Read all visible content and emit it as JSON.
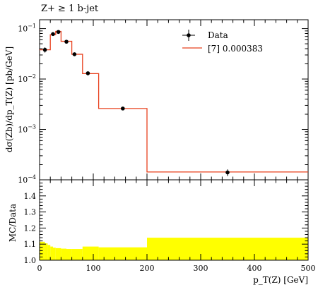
{
  "chart_data": [
    {
      "type": "line",
      "title": "Z+ ≥ 1 b-jet",
      "ylabel": "dσ(Zb)/dp_T(Z) [pb/GeV]",
      "yscale": "log",
      "ylim": [
        0.0001,
        0.15
      ],
      "xlim": [
        0,
        500
      ],
      "yticks": [
        {
          "value": 0.1,
          "mant": "10",
          "exp": "−1"
        },
        {
          "value": 0.01,
          "mant": "10",
          "exp": "−2"
        },
        {
          "value": 0.001,
          "mant": "10",
          "exp": "−3"
        },
        {
          "value": 0.0001,
          "mant": "10",
          "exp": "−4"
        }
      ],
      "legend": {
        "position": "top-right"
      },
      "series": [
        {
          "name": "Data",
          "kind": "points",
          "color": "#000000",
          "x": [
            10,
            25,
            35,
            50,
            65,
            90,
            155,
            350
          ],
          "y": [
            0.038,
            0.078,
            0.086,
            0.055,
            0.031,
            0.013,
            0.0026,
            0.00014
          ],
          "yerr_rel": [
            0.12,
            0.07,
            0.06,
            0.07,
            0.08,
            0.09,
            0.06,
            0.15
          ]
        },
        {
          "name": "[7] 0.000383",
          "kind": "step",
          "color": "#e8411e",
          "edges": [
            0,
            20,
            30,
            40,
            60,
            80,
            110,
            200,
            500
          ],
          "values": [
            0.038,
            0.076,
            0.088,
            0.056,
            0.031,
            0.0128,
            0.0026,
            0.000143
          ]
        }
      ]
    },
    {
      "type": "area",
      "ylabel": "MC/Data",
      "xlabel": "p_T(Z) [GeV]",
      "ylim": [
        1.0,
        1.5
      ],
      "xlim": [
        0,
        500
      ],
      "yticks": [
        1.0,
        1.1,
        1.2,
        1.3,
        1.4
      ],
      "xticks": [
        0,
        100,
        200,
        300,
        400,
        500
      ],
      "band_color": "#ffff00",
      "band": {
        "edges": [
          0,
          10,
          15,
          20,
          25,
          30,
          40,
          50,
          60,
          80,
          110,
          200,
          500
        ],
        "upper": [
          1.115,
          1.105,
          1.095,
          1.085,
          1.078,
          1.075,
          1.072,
          1.07,
          1.07,
          1.085,
          1.08,
          1.14
        ],
        "lower": [
          1.0,
          1.0,
          1.0,
          1.0,
          1.0,
          1.0,
          1.0,
          1.0,
          1.0,
          1.0,
          1.0,
          1.0
        ]
      }
    }
  ]
}
